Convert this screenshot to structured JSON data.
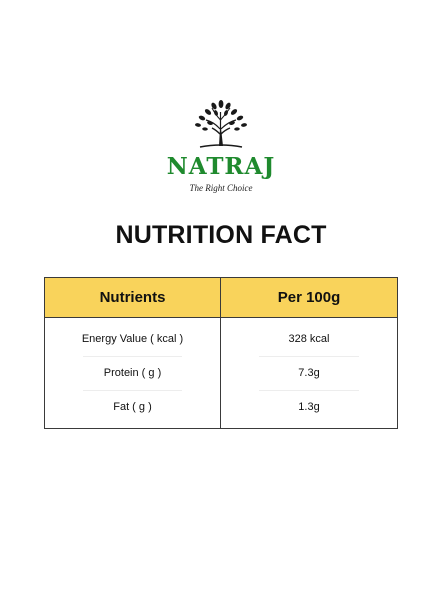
{
  "brand": {
    "name": "NATRAJ",
    "tagline": "The Right Choice",
    "logo_icon": "tree-icon",
    "color": "#1f8a2e"
  },
  "heading": "NUTRITION FACT",
  "table": {
    "header_color": "#f9d35b",
    "headers": {
      "nutrients": "Nutrients",
      "per_100g": "Per 100g"
    },
    "rows": [
      {
        "nutrient": "Energy Value ( kcal )",
        "value": "328 kcal"
      },
      {
        "nutrient": "Protein ( g )",
        "value": "7.3g"
      },
      {
        "nutrient": "Fat ( g )",
        "value": "1.3g"
      }
    ]
  }
}
